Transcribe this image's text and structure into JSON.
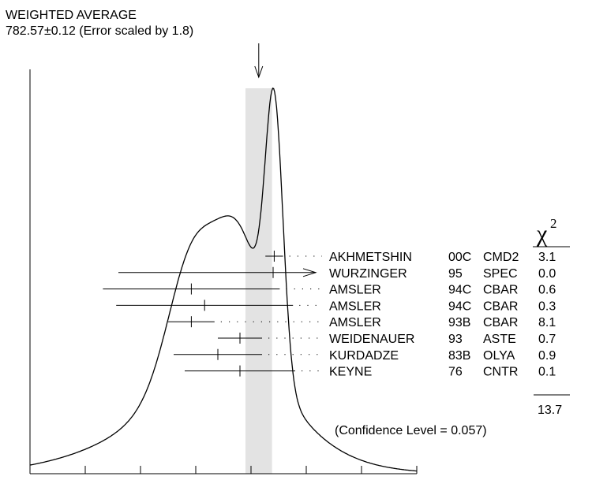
{
  "chart_data": {
    "type": "ideogram",
    "title": "WEIGHTED AVERAGE",
    "subtitle": "782.57±0.12 (Error scaled by 1.8)",
    "average": {
      "value": 782.57,
      "error": 0.12
    },
    "xlim": [
      780.5,
      784.0
    ],
    "x_ticks": [
      "780.5",
      "781",
      "781.5",
      "782",
      "782.5",
      "783",
      "783.5",
      "784"
    ],
    "chi2_symbol": "χ",
    "chi2_exponent": "2",
    "measurements": [
      {
        "author": "AKHMETSHIN",
        "year": "00C",
        "experiment": "CMD2",
        "chi2": "3.1",
        "value": 782.71,
        "error": 0.08
      },
      {
        "author": "WURZINGER",
        "year": "95",
        "experiment": "SPEC",
        "chi2": "0.0",
        "value": 782.7,
        "error": 0.0,
        "arrow": true,
        "low": 781.3
      },
      {
        "author": "AMSLER",
        "year": "94C",
        "experiment": "CBAR",
        "chi2": "0.6",
        "value": 781.96,
        "error": 0.8
      },
      {
        "author": "AMSLER",
        "year": "94C",
        "experiment": "CBAR",
        "chi2": "0.3",
        "value": 782.08,
        "error": 0.8
      },
      {
        "author": "AMSLER",
        "year": "93B",
        "experiment": "CBAR",
        "chi2": "8.1",
        "value": 781.96,
        "error": 0.21
      },
      {
        "author": "WEIDENAUER",
        "year": "93",
        "experiment": "ASTE",
        "chi2": "0.7",
        "value": 782.4,
        "error": 0.2
      },
      {
        "author": "KURDADZE",
        "year": "83B",
        "experiment": "OLYA",
        "chi2": "0.9",
        "value": 782.2,
        "error": 0.4
      },
      {
        "author": "KEYNE",
        "year": "76",
        "experiment": "CNTR",
        "chi2": "0.1",
        "value": 782.4,
        "error": 0.5
      }
    ],
    "chi2_total": "13.7",
    "confidence_level": "(Confidence Level = 0.057)"
  }
}
